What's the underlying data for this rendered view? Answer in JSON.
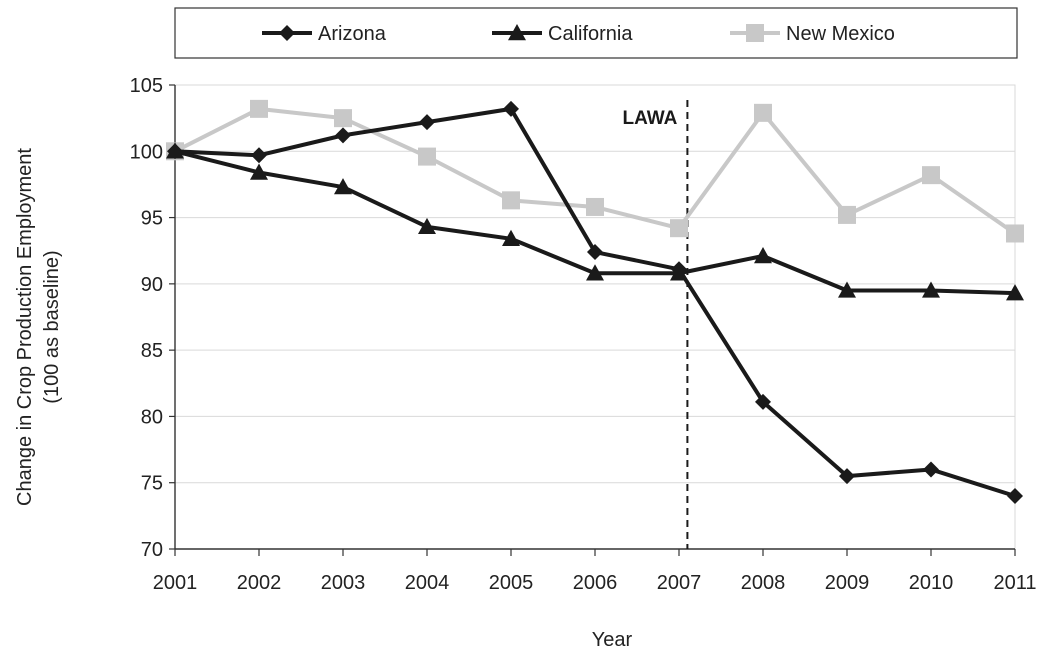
{
  "chart_data": {
    "type": "line",
    "title": "",
    "xlabel": "Year",
    "ylabel_lines": [
      "Change in Crop Production Employment",
      "(100 as baseline)"
    ],
    "x": [
      2001,
      2002,
      2003,
      2004,
      2005,
      2006,
      2007,
      2008,
      2009,
      2010,
      2011
    ],
    "ylim": [
      70,
      105
    ],
    "yticks": [
      70,
      75,
      80,
      85,
      90,
      95,
      100,
      105
    ],
    "grid": "horizontal",
    "legend_position": "top",
    "series": [
      {
        "name": "Arizona",
        "marker": "diamond",
        "color": "#1a1a1a",
        "values": [
          100,
          99.7,
          101.2,
          102.2,
          103.2,
          92.4,
          91.1,
          81.1,
          75.5,
          76.0,
          74.0
        ]
      },
      {
        "name": "California",
        "marker": "triangle",
        "color": "#1a1a1a",
        "values": [
          100,
          98.4,
          97.3,
          94.3,
          93.4,
          90.8,
          90.8,
          92.1,
          89.5,
          89.5,
          89.3
        ]
      },
      {
        "name": "New Mexico",
        "marker": "square",
        "color": "#c8c8c8",
        "values": [
          100,
          103.2,
          102.5,
          99.6,
          96.3,
          95.8,
          94.2,
          102.9,
          95.2,
          98.2,
          93.8
        ]
      }
    ],
    "annotations": [
      {
        "text": "LAWA",
        "x": 2007.1,
        "style": "dashed-vertical-line"
      }
    ]
  }
}
